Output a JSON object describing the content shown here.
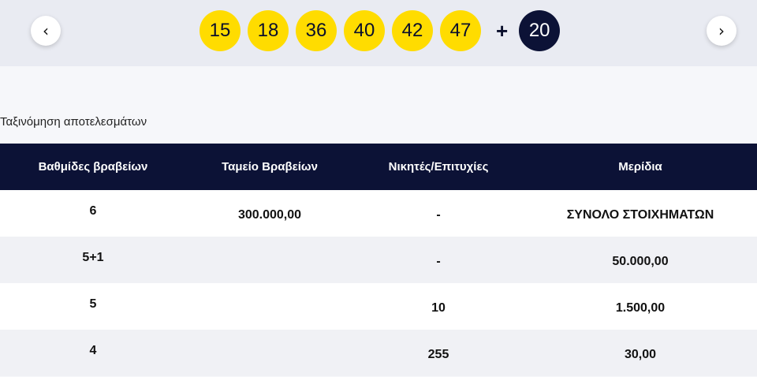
{
  "navigation": {
    "prev_icon": "chevron-left-icon",
    "next_icon": "chevron-right-icon",
    "prev_glyph": "‹",
    "next_glyph": "›"
  },
  "draw": {
    "numbers": [
      "15",
      "18",
      "36",
      "40",
      "42",
      "47"
    ],
    "plus": "+",
    "joker": "20",
    "colors": {
      "ball": "#ffdc00",
      "joker": "#0c1236"
    }
  },
  "results": {
    "sort_label": "Ταξινόμηση αποτελεσμάτων",
    "headers": [
      "Βαθμίδες βραβείων",
      "Ταμείο Βραβείων",
      "Νικητές/Επιτυχίες",
      "Μερίδια"
    ],
    "rows": [
      [
        "6",
        "300.000,00",
        "-",
        "ΣΥΝΟΛΟ ΣΤΟΙΧΗΜΑΤΩΝ"
      ],
      [
        "5+1",
        "",
        "-",
        "50.000,00"
      ],
      [
        "5",
        "",
        "10",
        "1.500,00"
      ],
      [
        "4",
        "",
        "255",
        "30,00"
      ]
    ],
    "header_color": "#0c1236"
  }
}
